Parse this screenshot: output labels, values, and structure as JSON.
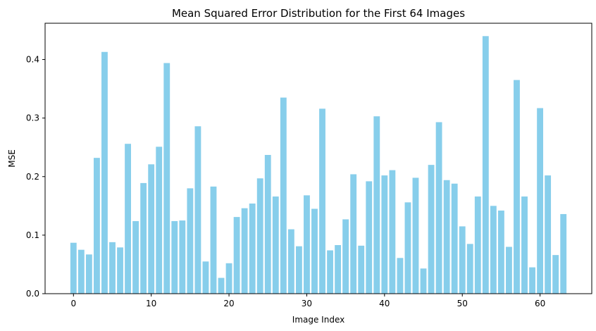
{
  "chart_data": {
    "type": "bar",
    "title": "Mean Squared Error Distribution for the First 64 Images",
    "xlabel": "Image Index",
    "ylabel": "MSE",
    "bar_color": "#87ceeb",
    "x": [
      0,
      1,
      2,
      3,
      4,
      5,
      6,
      7,
      8,
      9,
      10,
      11,
      12,
      13,
      14,
      15,
      16,
      17,
      18,
      19,
      20,
      21,
      22,
      23,
      24,
      25,
      26,
      27,
      28,
      29,
      30,
      31,
      32,
      33,
      34,
      35,
      36,
      37,
      38,
      39,
      40,
      41,
      42,
      43,
      44,
      45,
      46,
      47,
      48,
      49,
      50,
      51,
      52,
      53,
      54,
      55,
      56,
      57,
      58,
      59,
      60,
      61,
      62,
      63
    ],
    "values": [
      0.087,
      0.075,
      0.067,
      0.232,
      0.413,
      0.088,
      0.079,
      0.256,
      0.124,
      0.189,
      0.221,
      0.251,
      0.394,
      0.124,
      0.125,
      0.18,
      0.286,
      0.055,
      0.183,
      0.027,
      0.052,
      0.131,
      0.146,
      0.154,
      0.197,
      0.237,
      0.166,
      0.335,
      0.11,
      0.081,
      0.168,
      0.145,
      0.316,
      0.074,
      0.083,
      0.127,
      0.204,
      0.082,
      0.192,
      0.303,
      0.202,
      0.211,
      0.061,
      0.156,
      0.198,
      0.043,
      0.22,
      0.293,
      0.194,
      0.188,
      0.115,
      0.085,
      0.166,
      0.44,
      0.15,
      0.142,
      0.08,
      0.365,
      0.166,
      0.045,
      0.317,
      0.202,
      0.066,
      0.136
    ],
    "xlim": [
      -3.65,
      66.65
    ],
    "ylim": [
      0,
      0.462
    ],
    "xticks": [
      0,
      10,
      20,
      30,
      40,
      50,
      60
    ],
    "xtick_labels": [
      "0",
      "10",
      "20",
      "30",
      "40",
      "50",
      "60"
    ],
    "yticks": [
      0.0,
      0.1,
      0.2,
      0.3,
      0.4
    ],
    "ytick_labels": [
      "0.0",
      "0.1",
      "0.2",
      "0.3",
      "0.4"
    ]
  }
}
